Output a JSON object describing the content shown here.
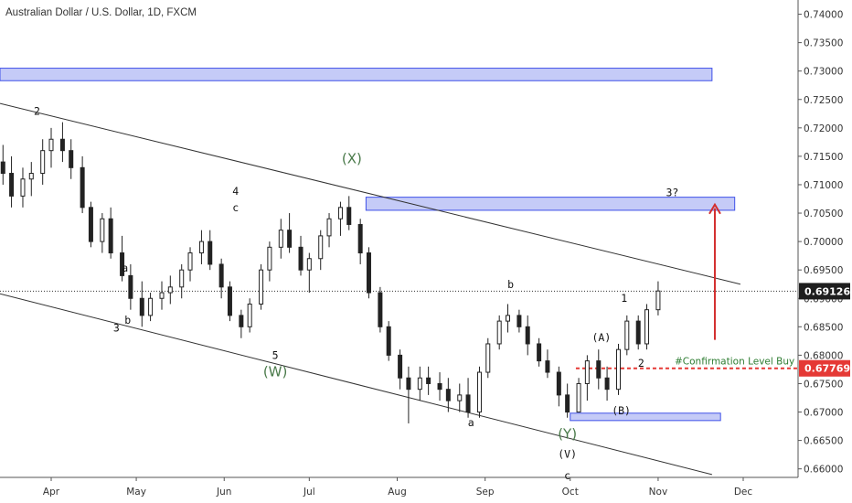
{
  "title": "Australian Dollar / U.S. Dollar, 1D, FXCM",
  "chart_data": {
    "type": "candlestick",
    "instrument": "Australian Dollar / U.S. Dollar",
    "timeframe": "1D",
    "source": "FXCM",
    "x_ticks": [
      "Apr",
      "May",
      "Jun",
      "Jul",
      "Aug",
      "Sep",
      "Oct",
      "Nov",
      "Dec"
    ],
    "y_ticks": [
      "0.66000",
      "0.66500",
      "0.67000",
      "0.67500",
      "0.68000",
      "0.68500",
      "0.69000",
      "0.69500",
      "0.70000",
      "0.70500",
      "0.71000",
      "0.71500",
      "0.72000",
      "0.72500",
      "0.73000",
      "0.73500",
      "0.74000"
    ],
    "ylim": [
      0.6585,
      0.7425
    ],
    "current_price": "0.69126",
    "confirmation_price": "0.67769",
    "confirmation_label": "#Confirmation Level Buy",
    "colors": {
      "candles": "#222222",
      "zone_fill": "#c5cbf7",
      "zone_stroke": "#3f51e8",
      "confirmation_line": "#e53935",
      "price_marker": "#1e1e1e",
      "arrow": "#d32f2f",
      "green_label": "#4a7a4a"
    },
    "zones": [
      {
        "name": "top-zone",
        "x0": "2021-03-01",
        "x1": "2021-11-20",
        "y0": 0.7283,
        "y1": 0.7305
      },
      {
        "name": "upper-resistance-zone",
        "x0": "2021-07-21",
        "x1": "2021-11-28",
        "y0": 0.7055,
        "y1": 0.7078
      },
      {
        "name": "support-zone",
        "x0": "2021-10-01",
        "x1": "2021-11-23",
        "y0": 0.6685,
        "y1": 0.6698
      }
    ],
    "channel_lines": [
      {
        "name": "upper-channel",
        "p1": {
          "x": "2021-03-01",
          "y": 0.7243
        },
        "p2": {
          "x": "2021-11-30",
          "y": 0.6925
        }
      },
      {
        "name": "lower-channel",
        "p1": {
          "x": "2021-03-01",
          "y": 0.6908
        },
        "p2": {
          "x": "2021-11-20",
          "y": 0.659
        }
      }
    ],
    "arrow": {
      "x": "2021-11-21",
      "y_from": 0.6827,
      "y_to": 0.7065
    },
    "annotations": [
      {
        "text": "2",
        "x": "2021-03-27",
        "y": 0.7223,
        "color": "dark"
      },
      {
        "text": "(X)",
        "x": "2021-07-16",
        "y": 0.7138,
        "color": "green"
      },
      {
        "text": "4",
        "x": "2021-06-05",
        "y": 0.7082,
        "color": "dark"
      },
      {
        "text": "c",
        "x": "2021-06-05",
        "y": 0.7053,
        "color": "dark"
      },
      {
        "text": "a",
        "x": "2021-04-27",
        "y": 0.6947,
        "color": "dark"
      },
      {
        "text": "3",
        "x": "2021-04-24",
        "y": 0.6842,
        "color": "dark"
      },
      {
        "text": "b",
        "x": "2021-04-28",
        "y": 0.6855,
        "color": "dark"
      },
      {
        "text": "5",
        "x": "2021-06-19",
        "y": 0.6793,
        "color": "dark"
      },
      {
        "text": "(W)",
        "x": "2021-06-19",
        "y": 0.6763,
        "color": "green"
      },
      {
        "text": "a",
        "x": "2021-08-27",
        "y": 0.6675,
        "color": "dark"
      },
      {
        "text": "b",
        "x": "2021-09-10",
        "y": 0.6918,
        "color": "dark"
      },
      {
        "text": "(Y)",
        "x": "2021-09-30",
        "y": 0.6653,
        "color": "green"
      },
      {
        "text": "(V)",
        "x": "2021-09-30",
        "y": 0.662,
        "color": "dark"
      },
      {
        "text": "c",
        "x": "2021-09-30",
        "y": 0.6582,
        "color": "dark"
      },
      {
        "text": "(A)",
        "x": "2021-10-12",
        "y": 0.6825,
        "color": "dark"
      },
      {
        "text": "(B)",
        "x": "2021-10-19",
        "y": 0.6696,
        "color": "dark"
      },
      {
        "text": "1",
        "x": "2021-10-20",
        "y": 0.6894,
        "color": "dark"
      },
      {
        "text": "2",
        "x": "2021-10-26",
        "y": 0.678,
        "color": "dark"
      },
      {
        "text": "3?",
        "x": "2021-11-06",
        "y": 0.708,
        "color": "dark"
      }
    ],
    "ohlc": [
      {
        "date": "2021-03-01",
        "o": 0.705,
        "h": 0.709,
        "l": 0.7,
        "c": 0.707
      },
      {
        "date": "2021-03-05",
        "o": 0.707,
        "h": 0.711,
        "l": 0.704,
        "c": 0.709
      },
      {
        "date": "2021-03-08",
        "o": 0.709,
        "h": 0.713,
        "l": 0.705,
        "c": 0.71
      },
      {
        "date": "2021-03-11",
        "o": 0.71,
        "h": 0.716,
        "l": 0.708,
        "c": 0.714
      },
      {
        "date": "2021-03-15",
        "o": 0.714,
        "h": 0.717,
        "l": 0.71,
        "c": 0.712
      },
      {
        "date": "2021-03-18",
        "o": 0.712,
        "h": 0.715,
        "l": 0.706,
        "c": 0.708
      },
      {
        "date": "2021-03-22",
        "o": 0.708,
        "h": 0.713,
        "l": 0.706,
        "c": 0.711
      },
      {
        "date": "2021-03-25",
        "o": 0.711,
        "h": 0.714,
        "l": 0.708,
        "c": 0.712
      },
      {
        "date": "2021-03-29",
        "o": 0.712,
        "h": 0.718,
        "l": 0.71,
        "c": 0.716
      },
      {
        "date": "2021-04-01",
        "o": 0.716,
        "h": 0.72,
        "l": 0.713,
        "c": 0.718
      },
      {
        "date": "2021-04-05",
        "o": 0.718,
        "h": 0.721,
        "l": 0.714,
        "c": 0.716
      },
      {
        "date": "2021-04-08",
        "o": 0.716,
        "h": 0.718,
        "l": 0.711,
        "c": 0.713
      },
      {
        "date": "2021-04-12",
        "o": 0.713,
        "h": 0.715,
        "l": 0.705,
        "c": 0.706
      },
      {
        "date": "2021-04-15",
        "o": 0.706,
        "h": 0.707,
        "l": 0.699,
        "c": 0.7
      },
      {
        "date": "2021-04-19",
        "o": 0.7,
        "h": 0.705,
        "l": 0.698,
        "c": 0.704
      },
      {
        "date": "2021-04-22",
        "o": 0.704,
        "h": 0.706,
        "l": 0.697,
        "c": 0.698
      },
      {
        "date": "2021-04-26",
        "o": 0.698,
        "h": 0.701,
        "l": 0.693,
        "c": 0.694
      },
      {
        "date": "2021-04-29",
        "o": 0.694,
        "h": 0.696,
        "l": 0.688,
        "c": 0.69
      },
      {
        "date": "2021-05-03",
        "o": 0.69,
        "h": 0.693,
        "l": 0.685,
        "c": 0.687
      },
      {
        "date": "2021-05-06",
        "o": 0.687,
        "h": 0.691,
        "l": 0.686,
        "c": 0.69
      },
      {
        "date": "2021-05-10",
        "o": 0.69,
        "h": 0.693,
        "l": 0.688,
        "c": 0.691
      },
      {
        "date": "2021-05-13",
        "o": 0.691,
        "h": 0.694,
        "l": 0.689,
        "c": 0.692
      },
      {
        "date": "2021-05-17",
        "o": 0.692,
        "h": 0.696,
        "l": 0.69,
        "c": 0.695
      },
      {
        "date": "2021-05-20",
        "o": 0.695,
        "h": 0.699,
        "l": 0.693,
        "c": 0.698
      },
      {
        "date": "2021-05-24",
        "o": 0.698,
        "h": 0.702,
        "l": 0.696,
        "c": 0.7
      },
      {
        "date": "2021-05-27",
        "o": 0.7,
        "h": 0.702,
        "l": 0.695,
        "c": 0.696
      },
      {
        "date": "2021-05-31",
        "o": 0.696,
        "h": 0.697,
        "l": 0.69,
        "c": 0.692
      },
      {
        "date": "2021-06-03",
        "o": 0.692,
        "h": 0.693,
        "l": 0.686,
        "c": 0.687
      },
      {
        "date": "2021-06-07",
        "o": 0.687,
        "h": 0.688,
        "l": 0.683,
        "c": 0.685
      },
      {
        "date": "2021-06-10",
        "o": 0.685,
        "h": 0.69,
        "l": 0.684,
        "c": 0.689
      },
      {
        "date": "2021-06-14",
        "o": 0.689,
        "h": 0.696,
        "l": 0.688,
        "c": 0.695
      },
      {
        "date": "2021-06-17",
        "o": 0.695,
        "h": 0.7,
        "l": 0.693,
        "c": 0.699
      },
      {
        "date": "2021-06-21",
        "o": 0.699,
        "h": 0.704,
        "l": 0.697,
        "c": 0.702
      },
      {
        "date": "2021-06-24",
        "o": 0.702,
        "h": 0.705,
        "l": 0.698,
        "c": 0.699
      },
      {
        "date": "2021-06-28",
        "o": 0.699,
        "h": 0.701,
        "l": 0.694,
        "c": 0.695
      },
      {
        "date": "2021-07-01",
        "o": 0.695,
        "h": 0.698,
        "l": 0.691,
        "c": 0.697
      },
      {
        "date": "2021-07-05",
        "o": 0.697,
        "h": 0.702,
        "l": 0.695,
        "c": 0.701
      },
      {
        "date": "2021-07-08",
        "o": 0.701,
        "h": 0.705,
        "l": 0.699,
        "c": 0.704
      },
      {
        "date": "2021-07-12",
        "o": 0.704,
        "h": 0.707,
        "l": 0.701,
        "c": 0.706
      },
      {
        "date": "2021-07-15",
        "o": 0.706,
        "h": 0.708,
        "l": 0.702,
        "c": 0.703
      },
      {
        "date": "2021-07-19",
        "o": 0.703,
        "h": 0.704,
        "l": 0.696,
        "c": 0.698
      },
      {
        "date": "2021-07-22",
        "o": 0.698,
        "h": 0.699,
        "l": 0.69,
        "c": 0.691
      },
      {
        "date": "2021-07-26",
        "o": 0.691,
        "h": 0.692,
        "l": 0.684,
        "c": 0.685
      },
      {
        "date": "2021-07-29",
        "o": 0.685,
        "h": 0.686,
        "l": 0.679,
        "c": 0.68
      },
      {
        "date": "2021-08-02",
        "o": 0.68,
        "h": 0.681,
        "l": 0.674,
        "c": 0.676
      },
      {
        "date": "2021-08-05",
        "o": 0.676,
        "h": 0.678,
        "l": 0.668,
        "c": 0.674
      },
      {
        "date": "2021-08-09",
        "o": 0.674,
        "h": 0.678,
        "l": 0.672,
        "c": 0.676
      },
      {
        "date": "2021-08-12",
        "o": 0.676,
        "h": 0.678,
        "l": 0.673,
        "c": 0.675
      },
      {
        "date": "2021-08-16",
        "o": 0.675,
        "h": 0.677,
        "l": 0.672,
        "c": 0.674
      },
      {
        "date": "2021-08-19",
        "o": 0.674,
        "h": 0.676,
        "l": 0.67,
        "c": 0.672
      },
      {
        "date": "2021-08-23",
        "o": 0.672,
        "h": 0.675,
        "l": 0.67,
        "c": 0.673
      },
      {
        "date": "2021-08-26",
        "o": 0.673,
        "h": 0.676,
        "l": 0.669,
        "c": 0.67
      },
      {
        "date": "2021-08-30",
        "o": 0.67,
        "h": 0.678,
        "l": 0.669,
        "c": 0.677
      },
      {
        "date": "2021-09-02",
        "o": 0.677,
        "h": 0.683,
        "l": 0.676,
        "c": 0.682
      },
      {
        "date": "2021-09-06",
        "o": 0.682,
        "h": 0.687,
        "l": 0.681,
        "c": 0.686
      },
      {
        "date": "2021-09-09",
        "o": 0.686,
        "h": 0.689,
        "l": 0.684,
        "c": 0.687
      },
      {
        "date": "2021-09-13",
        "o": 0.687,
        "h": 0.688,
        "l": 0.684,
        "c": 0.685
      },
      {
        "date": "2021-09-16",
        "o": 0.685,
        "h": 0.687,
        "l": 0.68,
        "c": 0.682
      },
      {
        "date": "2021-09-20",
        "o": 0.682,
        "h": 0.683,
        "l": 0.678,
        "c": 0.679
      },
      {
        "date": "2021-09-23",
        "o": 0.679,
        "h": 0.681,
        "l": 0.676,
        "c": 0.677
      },
      {
        "date": "2021-09-27",
        "o": 0.677,
        "h": 0.678,
        "l": 0.671,
        "c": 0.673
      },
      {
        "date": "2021-09-30",
        "o": 0.673,
        "h": 0.675,
        "l": 0.669,
        "c": 0.67
      },
      {
        "date": "2021-10-04",
        "o": 0.67,
        "h": 0.676,
        "l": 0.67,
        "c": 0.675
      },
      {
        "date": "2021-10-07",
        "o": 0.675,
        "h": 0.68,
        "l": 0.672,
        "c": 0.679
      },
      {
        "date": "2021-10-11",
        "o": 0.679,
        "h": 0.681,
        "l": 0.674,
        "c": 0.676
      },
      {
        "date": "2021-10-14",
        "o": 0.676,
        "h": 0.678,
        "l": 0.672,
        "c": 0.674
      },
      {
        "date": "2021-10-18",
        "o": 0.674,
        "h": 0.682,
        "l": 0.673,
        "c": 0.681
      },
      {
        "date": "2021-10-21",
        "o": 0.681,
        "h": 0.687,
        "l": 0.68,
        "c": 0.686
      },
      {
        "date": "2021-10-25",
        "o": 0.686,
        "h": 0.687,
        "l": 0.681,
        "c": 0.682
      },
      {
        "date": "2021-10-28",
        "o": 0.682,
        "h": 0.689,
        "l": 0.681,
        "c": 0.688
      },
      {
        "date": "2021-11-01",
        "o": 0.688,
        "h": 0.693,
        "l": 0.687,
        "c": 0.6913
      }
    ]
  }
}
